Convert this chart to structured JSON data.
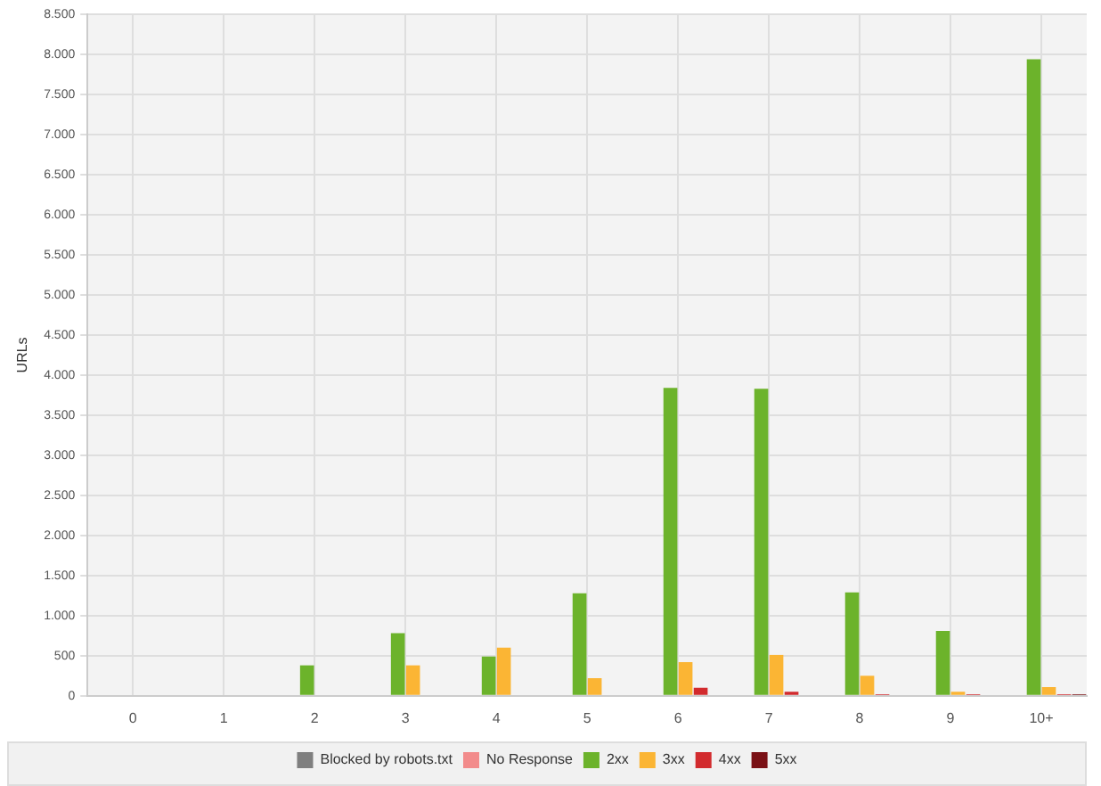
{
  "chart_data": {
    "type": "bar",
    "ylabel": "URLs",
    "categories": [
      "0",
      "1",
      "2",
      "3",
      "4",
      "5",
      "6",
      "7",
      "8",
      "9",
      "10+"
    ],
    "series": [
      {
        "name": "Blocked by robots.txt",
        "color": "#7f7f7f",
        "values": [
          0,
          0,
          0,
          0,
          0,
          0,
          0,
          0,
          0,
          0,
          0
        ]
      },
      {
        "name": "No Response",
        "color": "#f28b8b",
        "values": [
          0,
          0,
          0,
          0,
          0,
          0,
          0,
          0,
          0,
          0,
          0
        ]
      },
      {
        "name": "2xx",
        "color": "#6cb32b",
        "values": [
          0,
          0,
          380,
          780,
          490,
          1280,
          3840,
          3830,
          1290,
          810,
          7940
        ]
      },
      {
        "name": "3xx",
        "color": "#fbb534",
        "values": [
          0,
          0,
          0,
          380,
          600,
          220,
          420,
          510,
          250,
          50,
          110
        ]
      },
      {
        "name": "4xx",
        "color": "#d22b2e",
        "values": [
          0,
          0,
          0,
          0,
          null,
          null,
          100,
          50,
          20,
          20,
          20
        ]
      },
      {
        "name": "5xx",
        "color": "#7a1015",
        "values": [
          0,
          0,
          0,
          0,
          0,
          0,
          0,
          0,
          0,
          0,
          20
        ]
      }
    ],
    "ylim": [
      0,
      8500
    ],
    "yticks": [
      {
        "value": 0,
        "label": "0"
      },
      {
        "value": 500,
        "label": "500"
      },
      {
        "value": 1000,
        "label": "1.000"
      },
      {
        "value": 1500,
        "label": "1.500"
      },
      {
        "value": 2000,
        "label": "2.000"
      },
      {
        "value": 2500,
        "label": "2.500"
      },
      {
        "value": 3000,
        "label": "3.000"
      },
      {
        "value": 3500,
        "label": "3.500"
      },
      {
        "value": 4000,
        "label": "4.000"
      },
      {
        "value": 4500,
        "label": "4.500"
      },
      {
        "value": 5000,
        "label": "5.000"
      },
      {
        "value": 5500,
        "label": "5.500"
      },
      {
        "value": 6000,
        "label": "6.000"
      },
      {
        "value": 6500,
        "label": "6.500"
      },
      {
        "value": 7000,
        "label": "7.000"
      },
      {
        "value": 7500,
        "label": "7.500"
      },
      {
        "value": 8000,
        "label": "8.000"
      },
      {
        "value": 8500,
        "label": "8.500"
      }
    ],
    "grid": true,
    "legend": "bottom"
  }
}
